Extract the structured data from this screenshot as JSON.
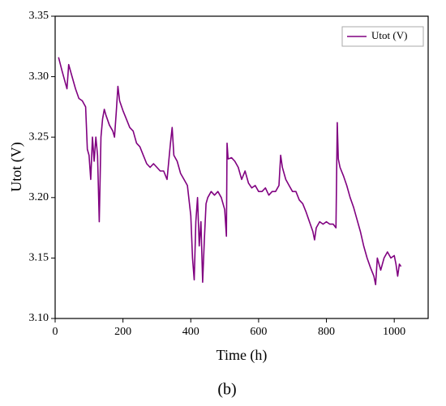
{
  "chart_data": {
    "type": "line",
    "xlabel": "Time (h)",
    "ylabel": "Utot (V)",
    "caption": "(b)",
    "legend": "upper right",
    "xlim": [
      0,
      1100
    ],
    "xticks": [
      0,
      200,
      400,
      600,
      800,
      1000
    ],
    "ylim": [
      3.1,
      3.35
    ],
    "yticks": [
      {
        "value": 3.1,
        "label": "3.10"
      },
      3.15,
      {
        "value": 3.2,
        "label": "3.20"
      },
      3.25,
      {
        "value": 3.3,
        "label": "3.30"
      },
      3.35
    ],
    "x": [
      10,
      20,
      30,
      35,
      40,
      50,
      60,
      70,
      80,
      90,
      95,
      100,
      105,
      110,
      115,
      120,
      125,
      130,
      135,
      140,
      145,
      150,
      160,
      170,
      175,
      180,
      185,
      190,
      200,
      210,
      220,
      230,
      240,
      250,
      260,
      270,
      280,
      290,
      300,
      310,
      320,
      330,
      340,
      345,
      350,
      360,
      370,
      380,
      390,
      400,
      405,
      410,
      415,
      420,
      425,
      430,
      435,
      440,
      445,
      450,
      460,
      470,
      480,
      490,
      500,
      505,
      507,
      510,
      520,
      530,
      540,
      550,
      560,
      570,
      580,
      590,
      600,
      610,
      620,
      630,
      640,
      650,
      660,
      665,
      670,
      680,
      690,
      700,
      710,
      720,
      730,
      740,
      750,
      760,
      765,
      770,
      780,
      790,
      800,
      810,
      820,
      828,
      832,
      835,
      840,
      850,
      860,
      870,
      880,
      890,
      900,
      910,
      920,
      930,
      940,
      945,
      950,
      955,
      960,
      970,
      980,
      990,
      1000,
      1005,
      1010,
      1015,
      1020
    ],
    "series": [
      {
        "name": "Utot (V)",
        "color": "#800080",
        "values": [
          3.316,
          3.305,
          3.295,
          3.29,
          3.31,
          3.3,
          3.29,
          3.282,
          3.28,
          3.275,
          3.24,
          3.235,
          3.215,
          3.25,
          3.23,
          3.25,
          3.235,
          3.18,
          3.25,
          3.265,
          3.273,
          3.268,
          3.26,
          3.255,
          3.25,
          3.27,
          3.292,
          3.28,
          3.272,
          3.265,
          3.258,
          3.255,
          3.245,
          3.242,
          3.235,
          3.228,
          3.225,
          3.228,
          3.225,
          3.222,
          3.222,
          3.215,
          3.245,
          3.258,
          3.235,
          3.23,
          3.22,
          3.215,
          3.21,
          3.185,
          3.15,
          3.132,
          3.18,
          3.2,
          3.16,
          3.18,
          3.13,
          3.165,
          3.195,
          3.2,
          3.205,
          3.202,
          3.205,
          3.2,
          3.19,
          3.168,
          3.245,
          3.232,
          3.233,
          3.23,
          3.225,
          3.215,
          3.222,
          3.212,
          3.208,
          3.21,
          3.205,
          3.205,
          3.208,
          3.202,
          3.205,
          3.205,
          3.21,
          3.235,
          3.225,
          3.215,
          3.21,
          3.205,
          3.205,
          3.198,
          3.195,
          3.188,
          3.18,
          3.172,
          3.165,
          3.175,
          3.18,
          3.178,
          3.18,
          3.178,
          3.178,
          3.175,
          3.262,
          3.232,
          3.225,
          3.218,
          3.21,
          3.2,
          3.192,
          3.182,
          3.172,
          3.16,
          3.15,
          3.142,
          3.135,
          3.128,
          3.15,
          3.145,
          3.14,
          3.15,
          3.155,
          3.15,
          3.152,
          3.145,
          3.135,
          3.145,
          3.143
        ]
      }
    ]
  }
}
